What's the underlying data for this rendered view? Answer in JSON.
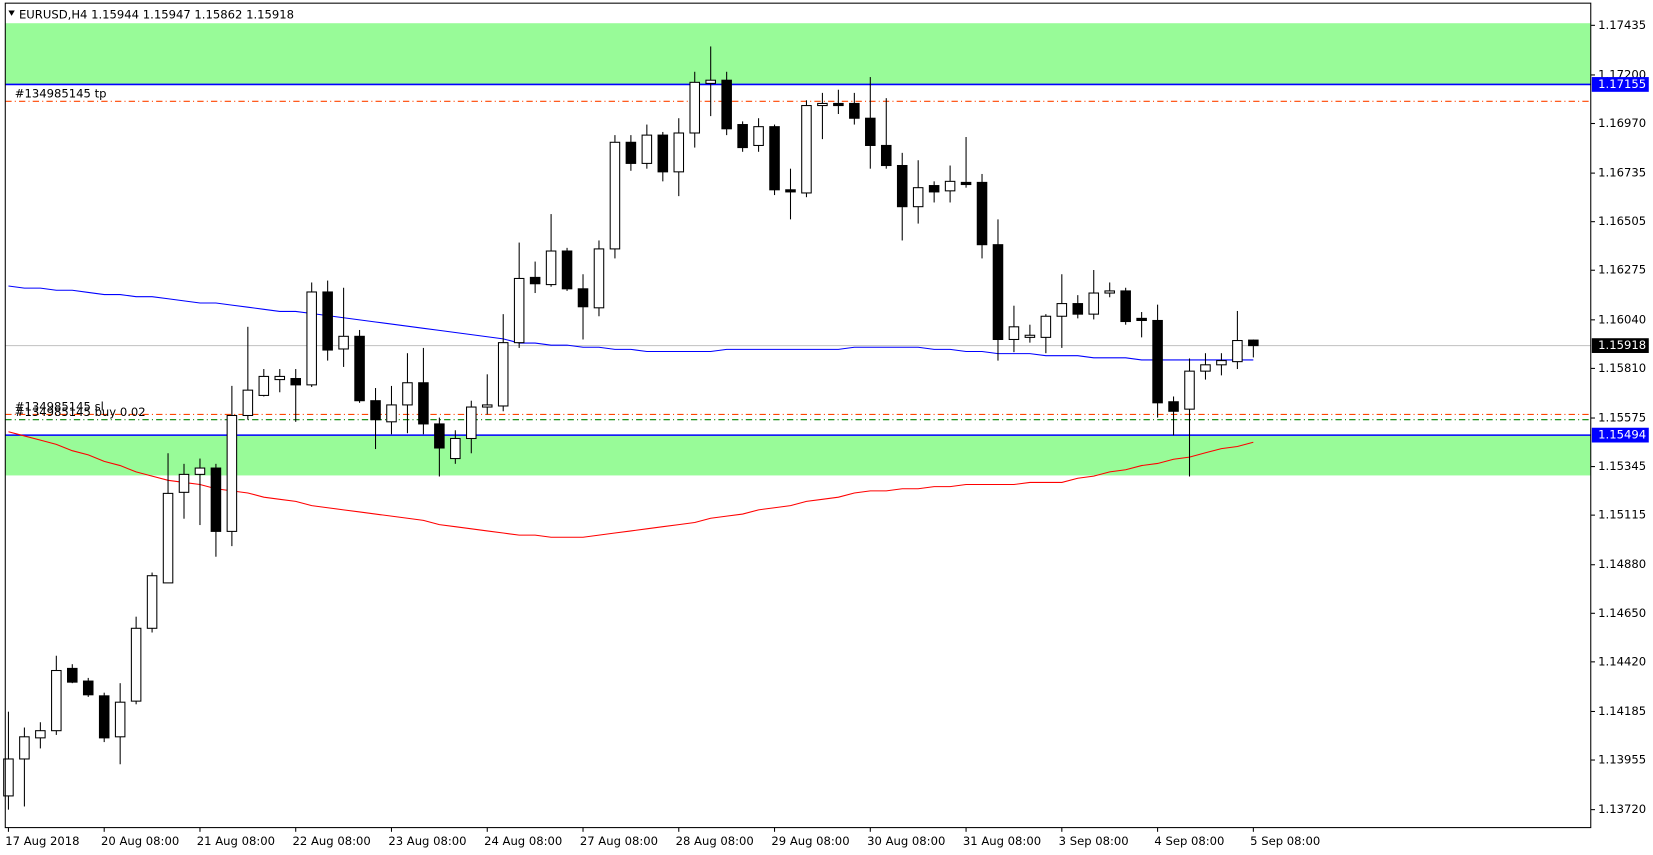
{
  "chart_data": {
    "type": "candlestick",
    "symbol": "EURUSD,H4",
    "categories": [
      "17 Aug 2018",
      null,
      null,
      null,
      null,
      null,
      "20 Aug 08:00",
      null,
      null,
      null,
      null,
      null,
      "21 Aug 08:00",
      null,
      null,
      null,
      null,
      null,
      "22 Aug 08:00",
      null,
      null,
      null,
      null,
      null,
      "23 Aug 08:00",
      null,
      null,
      null,
      null,
      null,
      "24 Aug 08:00",
      null,
      null,
      null,
      null,
      null,
      "27 Aug 08:00",
      null,
      null,
      null,
      null,
      null,
      "28 Aug 08:00",
      null,
      null,
      null,
      null,
      null,
      "29 Aug 08:00",
      null,
      null,
      null,
      null,
      null,
      "30 Aug 08:00",
      null,
      null,
      null,
      null,
      null,
      "31 Aug 08:00",
      null,
      null,
      null,
      null,
      null,
      "3 Sep 08:00",
      null,
      null,
      null,
      null,
      null,
      "4 Sep 08:00",
      null,
      null,
      null,
      null,
      null,
      "5 Sep 08:00"
    ],
    "open": [
      1.13785,
      1.1396,
      1.1406,
      1.14094,
      1.14389,
      1.14329,
      1.14259,
      1.14065,
      1.14234,
      1.14579,
      1.14794,
      1.15223,
      1.15308,
      1.15338,
      1.15038,
      1.15587,
      1.15682,
      1.15757,
      1.15762,
      1.15732,
      1.16172,
      1.15902,
      1.15962,
      1.15657,
      1.15557,
      1.15637,
      1.15742,
      1.15547,
      1.15383,
      1.15478,
      1.15627,
      1.15632,
      1.15932,
      1.16241,
      1.16207,
      1.16366,
      1.16187,
      1.16097,
      1.16376,
      1.16881,
      1.16781,
      1.16915,
      1.16741,
      1.16925,
      1.1716,
      1.17175,
      1.16965,
      1.16866,
      1.16955,
      1.16656,
      1.16641,
      1.17055,
      1.17065,
      1.17065,
      1.16995,
      1.16866,
      1.16771,
      1.16576,
      1.16676,
      1.16651,
      1.16691,
      1.16691,
      1.16396,
      1.15947,
      1.15957,
      1.15957,
      1.16057,
      1.16117,
      1.16067,
      1.16167,
      1.16177,
      1.16047,
      1.16037,
      1.15652,
      1.15617,
      1.15797,
      1.15827,
      1.15842,
      1.15944
    ],
    "high": [
      1.14184,
      1.14109,
      1.14134,
      1.14449,
      1.14409,
      1.14344,
      1.14274,
      1.14319,
      1.14634,
      1.14843,
      1.15408,
      1.15358,
      1.15383,
      1.15358,
      1.15727,
      1.16007,
      1.15807,
      1.15807,
      1.15807,
      1.16217,
      1.16226,
      1.16192,
      1.15992,
      1.15717,
      1.15727,
      1.15882,
      1.15907,
      1.15577,
      1.15517,
      1.15657,
      1.15782,
      1.16067,
      1.16406,
      1.16316,
      1.16541,
      1.16381,
      1.16256,
      1.16416,
      1.16915,
      1.16915,
      1.16965,
      1.1693,
      1.16995,
      1.17215,
      1.17335,
      1.17215,
      1.1698,
      1.16995,
      1.16965,
      1.16756,
      1.1708,
      1.17115,
      1.1713,
      1.17115,
      1.1719,
      1.1709,
      1.16831,
      1.16796,
      1.16696,
      1.16771,
      1.16906,
      1.16731,
      1.16516,
      1.16107,
      1.16017,
      1.16067,
      1.16256,
      1.16157,
      1.16276,
      1.16217,
      1.16192,
      1.16077,
      1.16112,
      1.15677,
      1.15857,
      1.15882,
      1.15882,
      1.16082,
      1.15947
    ],
    "low": [
      1.1372,
      1.13735,
      1.1401,
      1.14074,
      1.14319,
      1.14254,
      1.1404,
      1.13935,
      1.14219,
      1.14559,
      1.14794,
      1.15098,
      1.15068,
      1.14918,
      1.14968,
      1.15567,
      1.15677,
      1.15697,
      1.15557,
      1.15722,
      1.15847,
      1.15817,
      1.15647,
      1.15428,
      1.15498,
      1.15503,
      1.15498,
      1.15298,
      1.15358,
      1.15408,
      1.15592,
      1.15607,
      1.15907,
      1.16167,
      1.16197,
      1.16177,
      1.15947,
      1.16057,
      1.16331,
      1.16746,
      1.16756,
      1.16696,
      1.16626,
      1.16856,
      1.17005,
      1.16915,
      1.16836,
      1.16836,
      1.16631,
      1.16516,
      1.16621,
      1.16896,
      1.17015,
      1.16965,
      1.16756,
      1.16756,
      1.16416,
      1.16496,
      1.16596,
      1.16596,
      1.16666,
      1.16331,
      1.15847,
      1.15887,
      1.15932,
      1.15882,
      1.15907,
      1.16047,
      1.16042,
      1.16147,
      1.16017,
      1.15957,
      1.15577,
      1.15493,
      1.15298,
      1.15757,
      1.15777,
      1.15807,
      1.15862
    ],
    "close": [
      1.1396,
      1.14065,
      1.14094,
      1.14379,
      1.14324,
      1.14264,
      1.1406,
      1.14229,
      1.14579,
      1.14828,
      1.15218,
      1.15308,
      1.15338,
      1.15038,
      1.15587,
      1.15707,
      1.15772,
      1.15772,
      1.15732,
      1.16172,
      1.15897,
      1.15962,
      1.15657,
      1.15567,
      1.15637,
      1.15742,
      1.15547,
      1.15433,
      1.15478,
      1.15627,
      1.15637,
      1.15932,
      1.16236,
      1.16211,
      1.16366,
      1.16187,
      1.16102,
      1.16376,
      1.16881,
      1.16781,
      1.16915,
      1.16741,
      1.16925,
      1.17165,
      1.17175,
      1.16945,
      1.16856,
      1.16955,
      1.16656,
      1.16646,
      1.17055,
      1.17065,
      1.17055,
      1.16995,
      1.16866,
      1.16771,
      1.16576,
      1.16666,
      1.16646,
      1.16696,
      1.16681,
      1.16396,
      1.15947,
      1.16007,
      1.15967,
      1.16057,
      1.16117,
      1.16067,
      1.16167,
      1.16177,
      1.16032,
      1.16037,
      1.15647,
      1.15607,
      1.15797,
      1.15827,
      1.15847,
      1.15942,
      1.15918
    ],
    "up_color": "#ffffff",
    "down_color": "#000000",
    "wick_color": "#000000",
    "lines": [
      {
        "color": "#0000ff",
        "values": [
          1.162,
          1.1619,
          1.1619,
          1.1618,
          1.1618,
          1.1617,
          1.1616,
          1.1616,
          1.1615,
          1.1615,
          1.1614,
          1.1613,
          1.1612,
          1.1612,
          1.1611,
          1.161,
          1.1609,
          1.1608,
          1.1608,
          1.1607,
          1.1606,
          1.1605,
          1.1604,
          1.1603,
          1.1602,
          1.1601,
          1.16,
          1.1599,
          1.1598,
          1.1597,
          1.1596,
          1.1595,
          1.1593,
          1.1593,
          1.1592,
          1.1592,
          1.1591,
          1.1591,
          1.159,
          1.159,
          1.1589,
          1.1589,
          1.1589,
          1.1589,
          1.1589,
          1.159,
          1.159,
          1.159,
          1.159,
          1.159,
          1.159,
          1.159,
          1.159,
          1.1591,
          1.1591,
          1.1591,
          1.1591,
          1.1591,
          1.159,
          1.159,
          1.1589,
          1.1589,
          1.1588,
          1.1588,
          1.1588,
          1.1587,
          1.1587,
          1.1587,
          1.1586,
          1.1586,
          1.1586,
          1.1585,
          1.1585,
          1.1585,
          1.1585,
          1.1585,
          1.1585,
          1.1585,
          1.1585
        ]
      },
      {
        "color": "#ff0000",
        "values": [
          1.1551,
          1.1549,
          1.1547,
          1.1545,
          1.1542,
          1.154,
          1.1537,
          1.1535,
          1.1532,
          1.153,
          1.1528,
          1.1527,
          1.1526,
          1.1524,
          1.1523,
          1.1522,
          1.152,
          1.1519,
          1.1518,
          1.1516,
          1.1515,
          1.1514,
          1.1513,
          1.1512,
          1.1511,
          1.151,
          1.1509,
          1.1507,
          1.1506,
          1.1505,
          1.1504,
          1.1503,
          1.1502,
          1.1502,
          1.1501,
          1.1501,
          1.1501,
          1.1502,
          1.1503,
          1.1504,
          1.1505,
          1.1506,
          1.1507,
          1.1508,
          1.151,
          1.1511,
          1.1512,
          1.1514,
          1.1515,
          1.1516,
          1.1518,
          1.1519,
          1.152,
          1.1522,
          1.1523,
          1.1523,
          1.1524,
          1.1524,
          1.1525,
          1.1525,
          1.1526,
          1.1526,
          1.1526,
          1.1526,
          1.1527,
          1.1527,
          1.1527,
          1.1529,
          1.153,
          1.1532,
          1.1533,
          1.1535,
          1.1536,
          1.1538,
          1.1539,
          1.1541,
          1.1543,
          1.1544,
          1.1546
        ]
      }
    ],
    "zones": [
      {
        "from": 1.17155,
        "to": 1.17445,
        "color": "#98fb98"
      },
      {
        "from": 1.15303,
        "to": 1.15494,
        "color": "#98fb98"
      }
    ],
    "levels": [
      {
        "value": 1.17155,
        "color": "#0000ff"
      },
      {
        "value": 1.15494,
        "color": "#0000ff"
      }
    ],
    "current": {
      "value": 1.15918,
      "color": "#c0c0c0"
    },
    "orders": [
      {
        "label": "#134985145 tp",
        "value": 1.17075,
        "color": "#ff4500"
      },
      {
        "label": "#134985145 sl",
        "value": 1.15592,
        "color": "#ff4500"
      },
      {
        "label": "#134985145 buy 0.02",
        "value": 1.15567,
        "color": "#008000"
      }
    ],
    "ylim": [
      1.13635,
      1.1754
    ],
    "yticks": [
      1.17435,
      {
        "value": 1.172,
        "label": "1.17200"
      },
      {
        "value": 1.1697,
        "label": "1.16970"
      },
      1.16735,
      1.16505,
      1.16275,
      {
        "value": 1.1604,
        "label": "1.16040"
      },
      {
        "value": 1.1581,
        "label": "1.15810"
      },
      1.15575,
      1.15345,
      1.15115,
      {
        "value": 1.1488,
        "label": "1.14880"
      },
      {
        "value": 1.1465,
        "label": "1.14650"
      },
      {
        "value": 1.1442,
        "label": "1.14420"
      },
      1.14185,
      1.13955,
      {
        "value": 1.1372,
        "label": "1.13720"
      }
    ]
  }
}
